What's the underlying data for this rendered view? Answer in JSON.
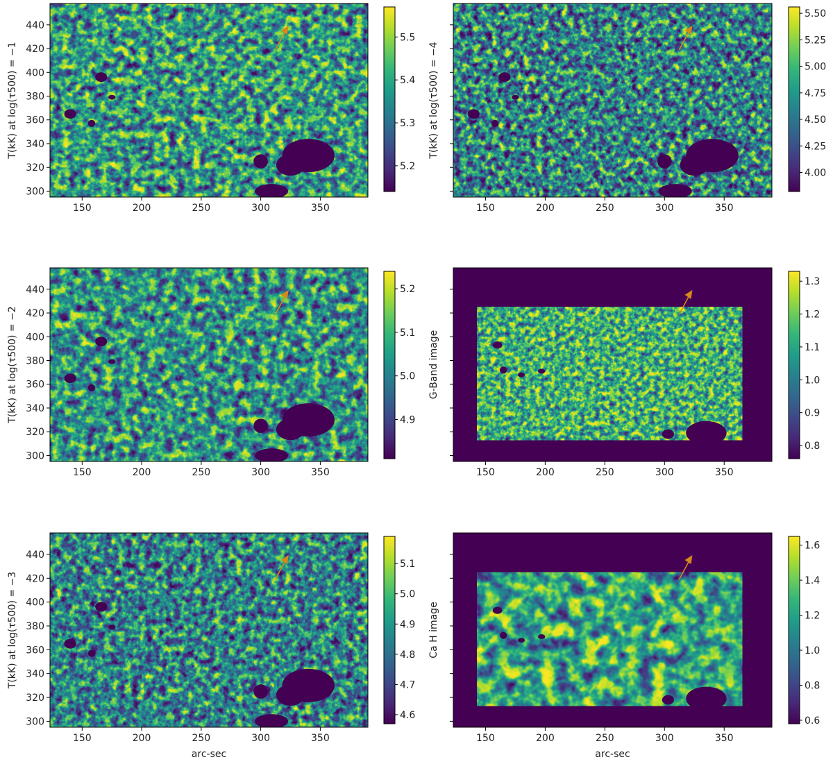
{
  "figure": {
    "xlabel": "arc-sec",
    "colormap": [
      "#440154",
      "#482878",
      "#3e4989",
      "#31688e",
      "#26828e",
      "#1f9e89",
      "#35b779",
      "#6ece58",
      "#b5de2b",
      "#fde725"
    ],
    "arrow_color": "#d4891a",
    "background": "#ffffff"
  },
  "chart_data": [
    {
      "type": "heatmap",
      "ylabel": "T(kK) at log(τ500) = −1",
      "xticks": [
        150,
        200,
        250,
        300,
        350
      ],
      "yticks": [
        300,
        320,
        340,
        360,
        380,
        400,
        420,
        440
      ],
      "show_ytick_labels": true,
      "xlim": [
        123,
        390
      ],
      "ylim": [
        295,
        458
      ],
      "colorbar": {
        "min": 5.14,
        "max": 5.57,
        "ticks": [
          5.2,
          5.3,
          5.4,
          5.5
        ]
      },
      "grid": false
    },
    {
      "type": "heatmap",
      "ylabel": "T(kK) at log(τ500) = −4",
      "xticks": [
        150,
        200,
        250,
        300,
        350
      ],
      "yticks": [
        300,
        320,
        340,
        360,
        380,
        400,
        420,
        440
      ],
      "show_ytick_labels": false,
      "xlim": [
        123,
        390
      ],
      "ylim": [
        295,
        458
      ],
      "colorbar": {
        "min": 3.82,
        "max": 5.56,
        "ticks": [
          4.0,
          4.25,
          4.5,
          4.75,
          5.0,
          5.25,
          5.5
        ],
        "tick_labels": [
          "4.00",
          "4.25",
          "4.50",
          "4.75",
          "5.00",
          "5.25",
          "5.50"
        ]
      },
      "grid": false
    },
    {
      "type": "heatmap",
      "ylabel": "T(kK) at log(τ500) = −2",
      "xticks": [
        150,
        200,
        250,
        300,
        350
      ],
      "yticks": [
        300,
        320,
        340,
        360,
        380,
        400,
        420,
        440
      ],
      "show_ytick_labels": true,
      "xlim": [
        123,
        390
      ],
      "ylim": [
        295,
        458
      ],
      "colorbar": {
        "min": 4.81,
        "max": 5.24,
        "ticks": [
          4.9,
          5.0,
          5.1,
          5.2
        ]
      },
      "grid": false
    },
    {
      "type": "heatmap",
      "ylabel": "G-Band image",
      "xticks": [
        150,
        200,
        250,
        300,
        350
      ],
      "yticks": [
        300,
        320,
        340,
        360,
        380,
        400,
        420,
        440
      ],
      "show_ytick_labels": false,
      "xlim": [
        123,
        390
      ],
      "ylim": [
        295,
        458
      ],
      "data_extent": {
        "x": [
          143,
          365
        ],
        "y": [
          313,
          425
        ]
      },
      "colorbar": {
        "min": 0.76,
        "max": 1.33,
        "ticks": [
          0.8,
          0.9,
          1.0,
          1.1,
          1.2,
          1.3
        ]
      },
      "grid": false
    },
    {
      "type": "heatmap",
      "ylabel": "T(kK) at log(τ500) = −3",
      "xlabel": "arc-sec",
      "xticks": [
        150,
        200,
        250,
        300,
        350
      ],
      "yticks": [
        300,
        320,
        340,
        360,
        380,
        400,
        420,
        440
      ],
      "show_ytick_labels": true,
      "xlim": [
        123,
        390
      ],
      "ylim": [
        295,
        458
      ],
      "colorbar": {
        "min": 4.57,
        "max": 5.19,
        "ticks": [
          4.6,
          4.7,
          4.8,
          4.9,
          5.0,
          5.1
        ]
      },
      "grid": false
    },
    {
      "type": "heatmap",
      "ylabel": "Ca H image",
      "xlabel": "arc-sec",
      "xticks": [
        150,
        200,
        250,
        300,
        350
      ],
      "yticks": [
        300,
        320,
        340,
        360,
        380,
        400,
        420,
        440
      ],
      "show_ytick_labels": false,
      "xlim": [
        123,
        390
      ],
      "ylim": [
        295,
        458
      ],
      "data_extent": {
        "x": [
          143,
          365
        ],
        "y": [
          313,
          425
        ]
      },
      "colorbar": {
        "min": 0.58,
        "max": 1.65,
        "ticks": [
          0.6,
          0.8,
          1.0,
          1.2,
          1.4,
          1.6
        ]
      },
      "grid": false
    }
  ]
}
